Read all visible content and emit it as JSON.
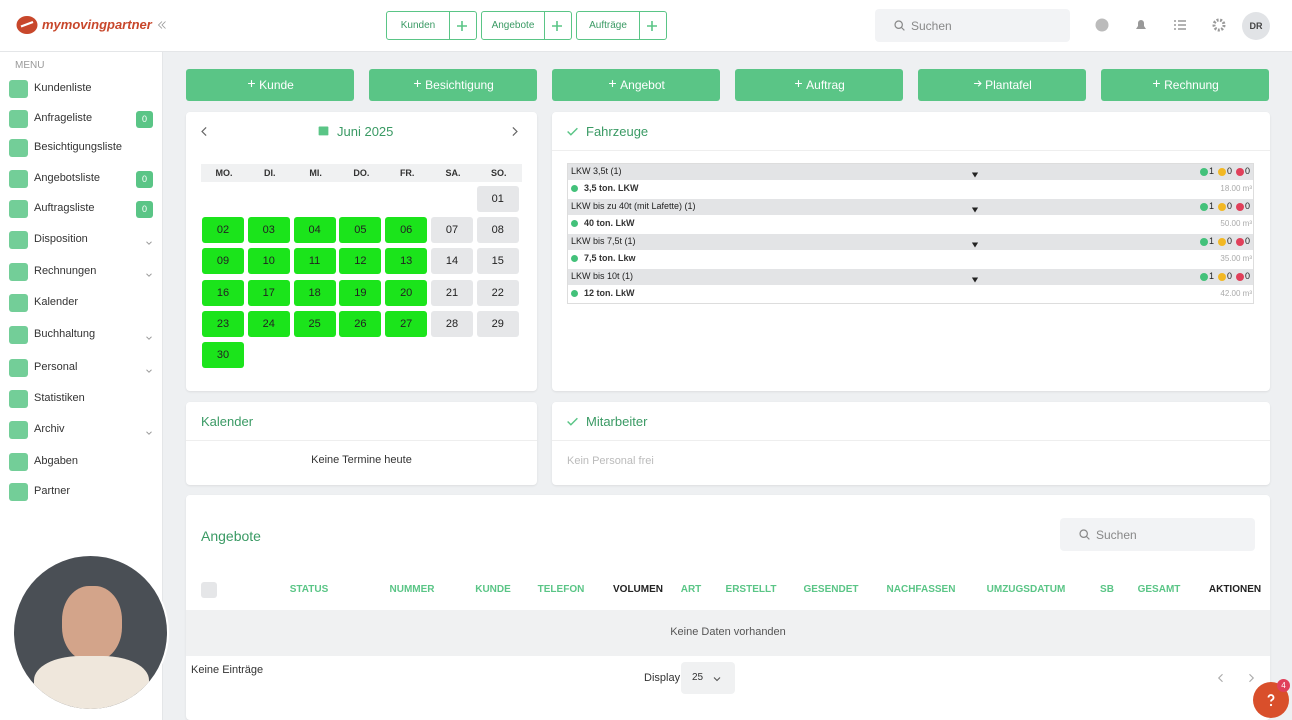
{
  "header": {
    "logo": "mymovingpartner",
    "tabs": [
      "Kunden",
      "Angebote",
      "Aufträge"
    ],
    "search": "Suchen",
    "avatar": "DR"
  },
  "sidebar": {
    "menu_title": "MENU",
    "items": [
      {
        "label": "Kundenliste"
      },
      {
        "label": "Anfrageliste",
        "badge": "0"
      },
      {
        "label": "Besichtigungsliste"
      },
      {
        "label": "Angebotsliste",
        "badge": "0"
      },
      {
        "label": "Auftragsliste",
        "badge": "0"
      },
      {
        "label": "Disposition"
      },
      {
        "label": "Rechnungen"
      },
      {
        "label": "Kalender"
      },
      {
        "label": "Buchhaltung"
      },
      {
        "label": "Personal"
      },
      {
        "label": "Statistiken"
      },
      {
        "label": "Archiv"
      },
      {
        "label": "Abgaben"
      },
      {
        "label": "Partner"
      }
    ]
  },
  "quick_actions": [
    "Kunde",
    "Besichtigung",
    "Angebot",
    "Auftrag",
    "Plantafel",
    "Rechnung"
  ],
  "calendar": {
    "month": "Juni 2025",
    "weekdays": [
      "MO.",
      "DI.",
      "MI.",
      "DO.",
      "FR.",
      "SA.",
      "SO."
    ],
    "days": [
      "01",
      "02",
      "03",
      "04",
      "05",
      "06",
      "07",
      "08",
      "09",
      "10",
      "11",
      "12",
      "13",
      "14",
      "15",
      "16",
      "17",
      "18",
      "19",
      "20",
      "21",
      "22",
      "23",
      "24",
      "25",
      "26",
      "27",
      "28",
      "29",
      "30"
    ]
  },
  "vehicles": {
    "title": "Fahrzeuge",
    "groups": [
      {
        "name": "LKW 3,5t (1)",
        "counts": [
          "1",
          "0",
          "0"
        ],
        "vehicle": "3,5 ton. LKW",
        "volume": "18.00 m³"
      },
      {
        "name": "LKW bis zu 40t (mit Lafette) (1)",
        "counts": [
          "1",
          "0",
          "0"
        ],
        "vehicle": "40 ton. LkW",
        "volume": "50.00 m³"
      },
      {
        "name": "LKW bis 7,5t (1)",
        "counts": [
          "1",
          "0",
          "0"
        ],
        "vehicle": "7,5 ton. Lkw",
        "volume": "35.00 m³"
      },
      {
        "name": "LKW bis 10t (1)",
        "counts": [
          "1",
          "0",
          "0"
        ],
        "vehicle": "12 ton. LkW",
        "volume": "42.00 m³"
      }
    ]
  },
  "kalender": {
    "title": "Kalender",
    "empty": "Keine Termine heute"
  },
  "mitarbeiter": {
    "title": "Mitarbeiter",
    "empty": "Kein Personal frei"
  },
  "angebote": {
    "title": "Angebote",
    "search": "Suchen",
    "columns": [
      "STATUS",
      "NUMMER",
      "KUNDE",
      "TELEFON",
      "VOLUMEN",
      "ART",
      "ERSTELLT",
      "GESENDET",
      "NACHFASSEN",
      "UMZUGSDATUM",
      "SB",
      "GESAMT",
      "AKTIONEN"
    ],
    "empty": "Keine Daten vorhanden",
    "footer": "Keine Einträge",
    "display_label": "Display",
    "page_size": "25"
  },
  "help_badge": "4"
}
